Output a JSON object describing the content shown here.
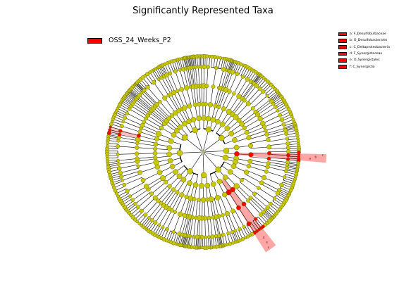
{
  "figure": {
    "title": "Significantly Represented Taxa"
  },
  "class_legend": [
    {
      "label": "OSS_24_Weeks_P2",
      "color": "#ff0000"
    }
  ],
  "taxa_legend": [
    {
      "label": "a: F_Desulfobulbaceae",
      "color": "#ff0000"
    },
    {
      "label": "b: O_Desulfobacterales",
      "color": "#ff0000"
    },
    {
      "label": "c: C_Deltaproteobacteria",
      "color": "#ff0000"
    },
    {
      "label": "d: F_Synergistaceae",
      "color": "#ff0000"
    },
    {
      "label": "e: O_Synergistales",
      "color": "#ff0000"
    },
    {
      "label": "f: C_Synergistia",
      "color": "#ff0000"
    }
  ],
  "cladogram": {
    "node_color": "#c8c80a",
    "node_outline": "#6b6b00",
    "highlight_color": "#ff0000",
    "levels": 6,
    "highlighted_clades": [
      {
        "id": "a"
      },
      {
        "id": "b"
      },
      {
        "id": "c"
      },
      {
        "id": "d"
      },
      {
        "id": "e"
      },
      {
        "id": "f"
      }
    ]
  }
}
